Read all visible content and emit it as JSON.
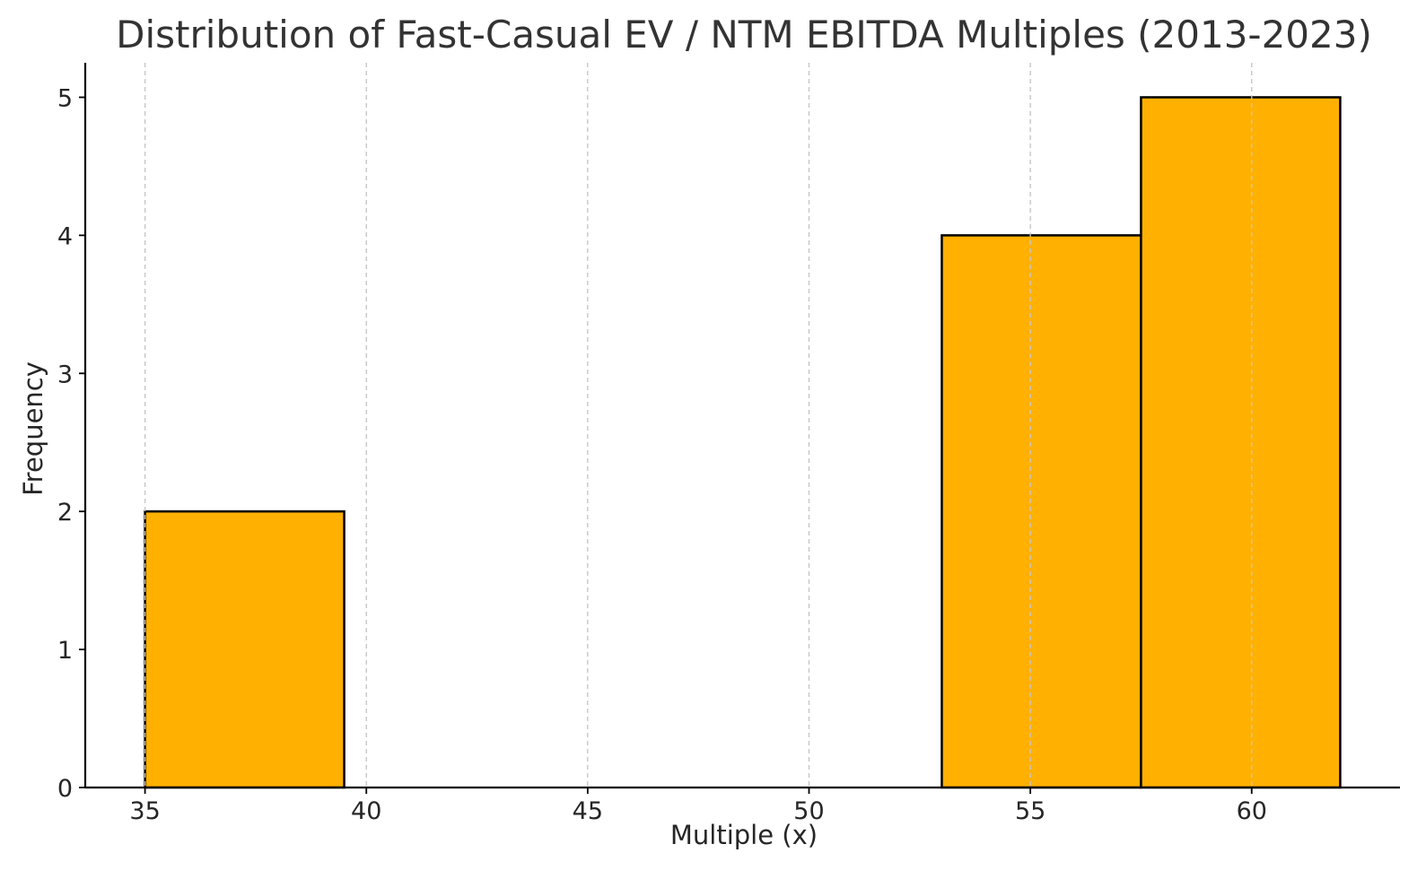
{
  "chart_data": {
    "type": "bar",
    "title": "Distribution of Fast-Casual EV / NTM EBITDA Multiples (2013-2023)",
    "xlabel": "Multiple (x)",
    "ylabel": "Frequency",
    "xlim": [
      33.65,
      63.35
    ],
    "ylim": [
      0,
      5.25
    ],
    "xticks": [
      35,
      40,
      45,
      50,
      55,
      60
    ],
    "yticks": [
      0,
      1,
      2,
      3,
      4,
      5
    ],
    "grid": "x-axis dashed vertical lines",
    "legend": "none",
    "bins": [
      {
        "start": 35.0,
        "end": 39.5,
        "count": 2
      },
      {
        "start": 53.0,
        "end": 57.5,
        "count": 4
      },
      {
        "start": 57.5,
        "end": 62.0,
        "count": 5
      }
    ],
    "colors": {
      "bar_fill": "#ffb000",
      "bar_edge": "#000000",
      "grid": "#c8c8c8",
      "text": "#262626",
      "title": "#333333"
    }
  }
}
